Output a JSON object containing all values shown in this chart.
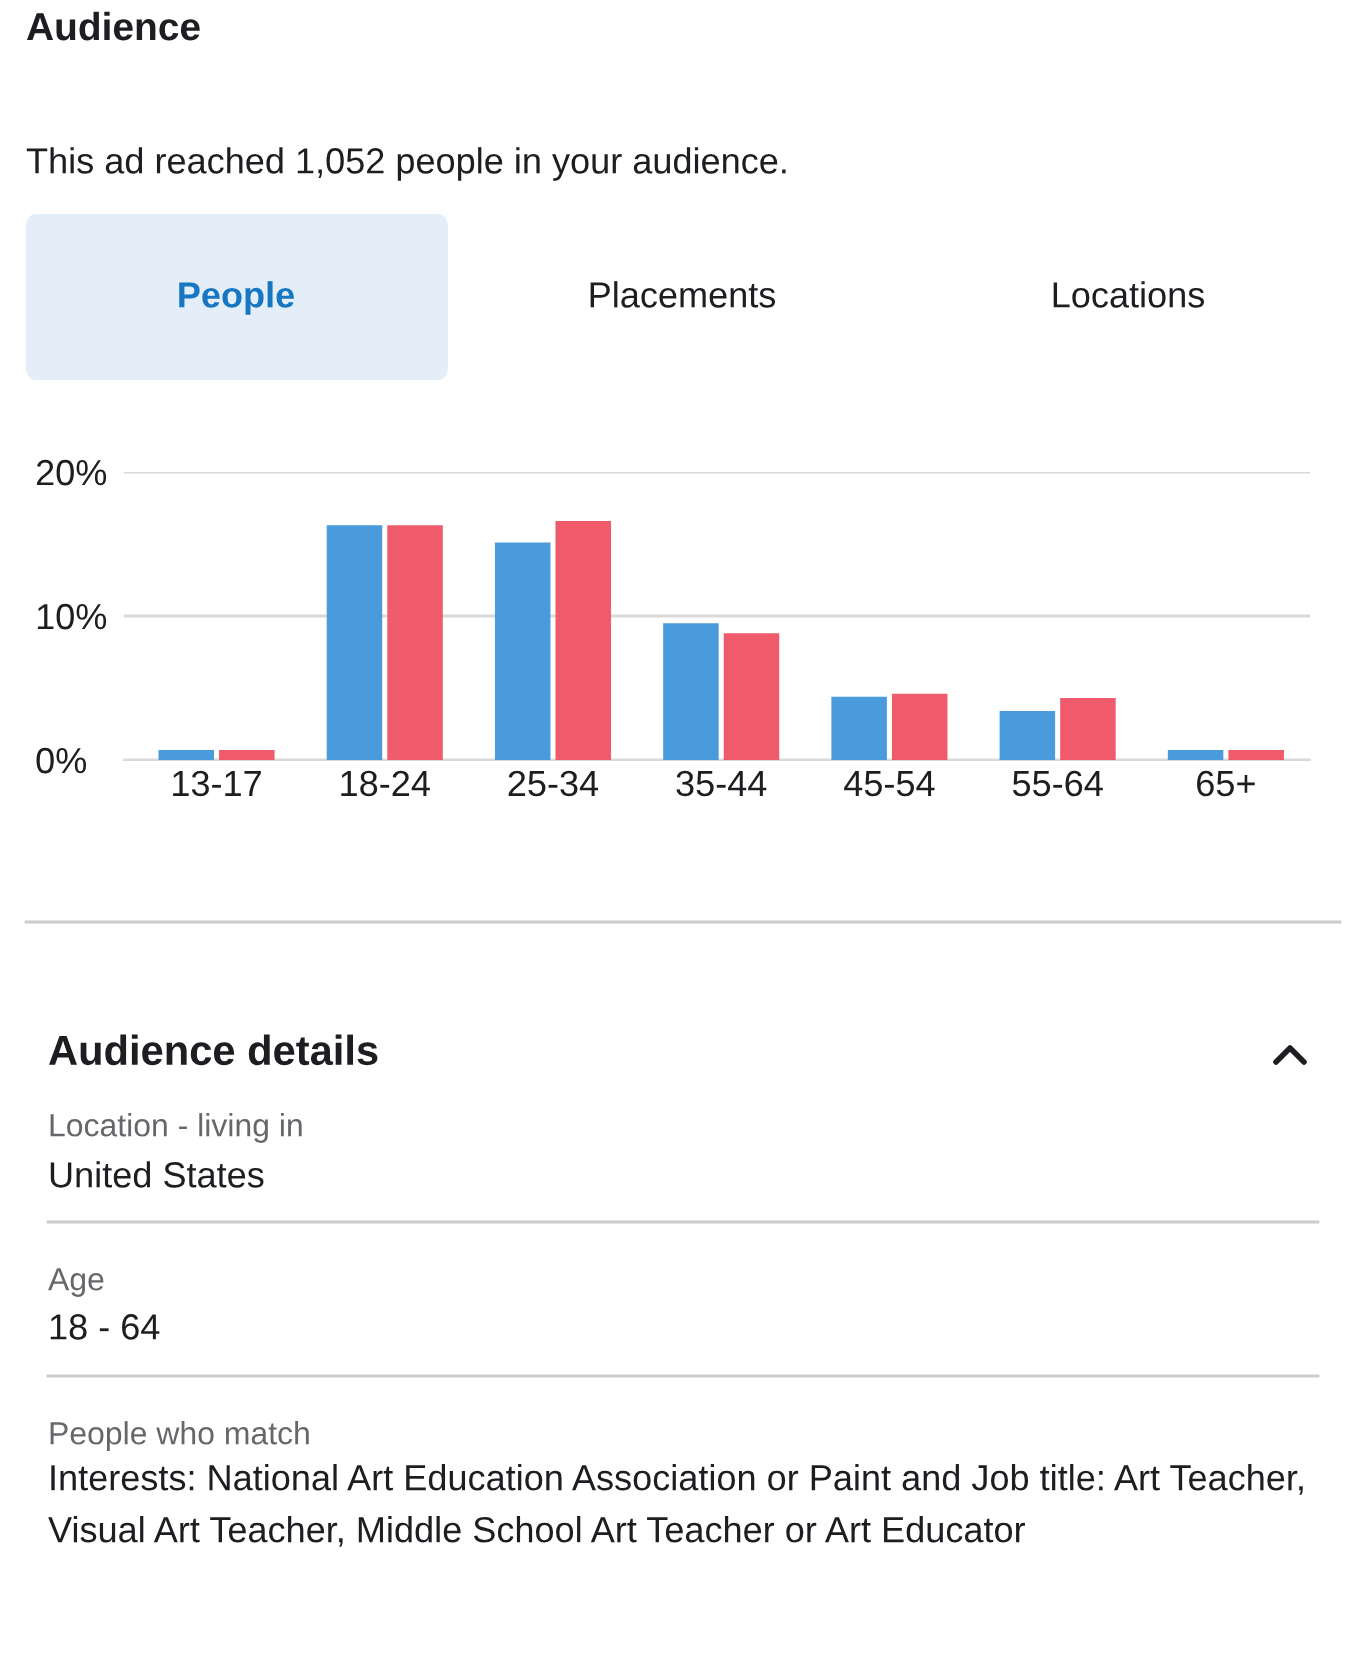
{
  "chart_data": {
    "type": "bar",
    "title": "Audience",
    "subtitle": "This ad reached 1,052 people in your audience.",
    "categories": [
      "13-17",
      "18-24",
      "25-34",
      "35-44",
      "45-54",
      "55-64",
      "65+"
    ],
    "series": [
      {
        "color": "#4a9bdc",
        "values": [
          0.7,
          16.3,
          15.1,
          9.5,
          4.4,
          3.4,
          0.7
        ]
      },
      {
        "color": "#f05b6b",
        "values": [
          0.7,
          16.3,
          16.6,
          8.8,
          4.6,
          4.3,
          0.7
        ]
      }
    ],
    "ylim": [
      0,
      20
    ],
    "yticks": [
      {
        "value": 0,
        "label": "0%"
      },
      {
        "value": 10,
        "label": "10%"
      },
      {
        "value": 20,
        "label": "20%"
      }
    ],
    "grid": "y",
    "legend": false,
    "annotations": [
      "People",
      "Placements",
      "Locations",
      "Audience details",
      "Location - living in",
      "United States",
      "Age",
      "18 - 64",
      "People who match",
      "Interests: National Art Education Association or Paint and Job title: Art Teacher, Visual Art Teacher, Middle School Art Teacher or Art Educator"
    ]
  }
}
